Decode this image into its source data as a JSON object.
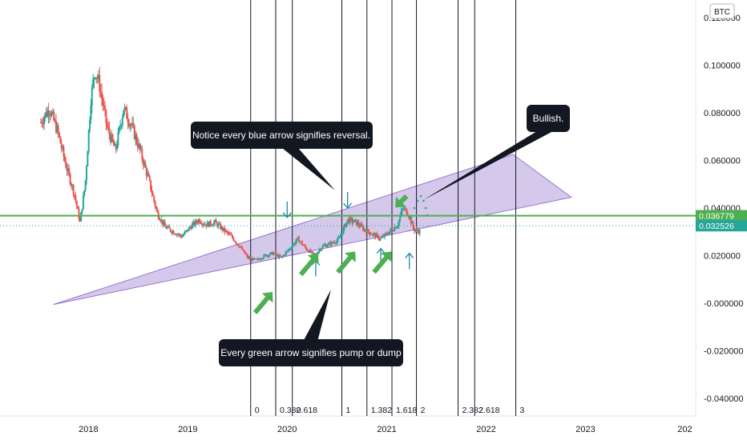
{
  "chart_data": {
    "type": "candlestick",
    "symbol_badge": "BTC",
    "y_ticks": [
      0.12,
      0.1,
      0.08,
      0.06,
      0.04,
      0.02,
      0.0,
      -0.02,
      -0.04
    ],
    "y_tick_labels": [
      "0.120000",
      "0.100000",
      "0.080000",
      "0.060000",
      "0.040000",
      "0.020000",
      "-0.000000",
      "-0.020000",
      "-0.040000"
    ],
    "ylim": [
      -0.046,
      0.126
    ],
    "x_ticks": [
      "2018",
      "2019",
      "2020",
      "2021",
      "2022",
      "2023",
      "202"
    ],
    "xlim": [
      "2017-02-10",
      "2024-02-10"
    ],
    "grid": false,
    "price_lines": [
      {
        "value": 0.036779,
        "label": "0.036779",
        "color": "#4caf50",
        "style": "solid"
      },
      {
        "value": 0.032526,
        "label": "0.032526",
        "color": "#26a69a",
        "style": "dotted"
      }
    ],
    "price_path": [
      [
        "2017-07-10",
        0.076
      ],
      [
        "2017-08-10",
        0.082
      ],
      [
        "2017-09-10",
        0.072
      ],
      [
        "2017-10-10",
        0.058
      ],
      [
        "2017-11-10",
        0.046
      ],
      [
        "2017-12-01",
        0.034
      ],
      [
        "2017-12-20",
        0.05
      ],
      [
        "2018-01-10",
        0.086
      ],
      [
        "2018-01-25",
        0.098
      ],
      [
        "2018-02-10",
        0.092
      ],
      [
        "2018-03-10",
        0.074
      ],
      [
        "2018-04-10",
        0.064
      ],
      [
        "2018-05-10",
        0.082
      ],
      [
        "2018-06-10",
        0.074
      ],
      [
        "2018-07-10",
        0.064
      ],
      [
        "2018-08-10",
        0.052
      ],
      [
        "2018-09-10",
        0.038
      ],
      [
        "2018-10-10",
        0.032
      ],
      [
        "2018-11-10",
        0.03
      ],
      [
        "2018-12-10",
        0.028
      ],
      [
        "2019-01-10",
        0.032
      ],
      [
        "2019-02-10",
        0.035
      ],
      [
        "2019-03-10",
        0.033
      ],
      [
        "2019-04-10",
        0.034
      ],
      [
        "2019-05-10",
        0.031
      ],
      [
        "2019-06-10",
        0.028
      ],
      [
        "2019-07-10",
        0.024
      ],
      [
        "2019-08-10",
        0.019
      ],
      [
        "2019-09-10",
        0.018
      ],
      [
        "2019-10-10",
        0.02
      ],
      [
        "2019-11-10",
        0.021
      ],
      [
        "2019-12-10",
        0.019
      ],
      [
        "2020-01-10",
        0.023
      ],
      [
        "2020-02-10",
        0.027
      ],
      [
        "2020-03-10",
        0.023
      ],
      [
        "2020-04-10",
        0.02
      ],
      [
        "2020-05-10",
        0.024
      ],
      [
        "2020-06-10",
        0.025
      ],
      [
        "2020-07-10",
        0.027
      ],
      [
        "2020-08-10",
        0.035
      ],
      [
        "2020-09-10",
        0.034
      ],
      [
        "2020-10-10",
        0.031
      ],
      [
        "2020-11-10",
        0.029
      ],
      [
        "2020-12-10",
        0.027
      ],
      [
        "2021-01-10",
        0.03
      ],
      [
        "2021-02-10",
        0.033
      ],
      [
        "2021-03-01",
        0.04
      ],
      [
        "2021-03-20",
        0.038
      ],
      [
        "2021-04-10",
        0.031
      ],
      [
        "2021-05-05",
        0.03
      ]
    ],
    "wedge": {
      "points": [
        [
          "2017-08-25",
          -0.0005
        ],
        [
          "2022-04-10",
          0.0625
        ],
        [
          "2022-11-10",
          0.0445
        ]
      ],
      "fill": "#b39ddb"
    },
    "fib_time_levels": {
      "labels": [
        "0",
        "0.382",
        "0.618",
        "1",
        "1.382",
        "1.618",
        "2",
        "2.382",
        "2.618",
        "3"
      ],
      "dates": [
        "2019-08-20",
        "2019-11-20",
        "2020-01-20",
        "2020-07-20",
        "2020-10-20",
        "2021-01-20",
        "2021-04-20",
        "2021-09-20",
        "2021-11-20",
        "2022-04-20"
      ]
    },
    "annotations": [
      {
        "text": "Notice every blue arrow signifies reversal.",
        "target": [
          "2020-08-01",
          0.043
        ]
      },
      {
        "text": "Bullish.",
        "target": [
          "2021-04-01",
          0.044
        ]
      },
      {
        "text": "Every green arrow signifies pump or dump",
        "target": [
          "2020-05-25",
          0.005
        ]
      }
    ],
    "blue_arrows": [
      {
        "date": "2020-01-01",
        "value": 0.036,
        "dir": "down"
      },
      {
        "date": "2020-08-10",
        "value": 0.04,
        "dir": "down"
      },
      {
        "date": "2020-04-15",
        "value": 0.018,
        "dir": "up"
      },
      {
        "date": "2020-12-10",
        "value": 0.023,
        "dir": "up"
      },
      {
        "date": "2021-03-25",
        "value": 0.021,
        "dir": "up"
      }
    ],
    "green_arrows": [
      {
        "date": "2019-09-05",
        "value": -0.004,
        "dir": "up"
      },
      {
        "date": "2020-02-20",
        "value": 0.012,
        "dir": "up"
      },
      {
        "date": "2020-07-05",
        "value": 0.013,
        "dir": "up"
      },
      {
        "date": "2020-11-15",
        "value": 0.013,
        "dir": "up"
      },
      {
        "date": "2021-03-15",
        "value": 0.045,
        "dir": "down"
      }
    ]
  }
}
